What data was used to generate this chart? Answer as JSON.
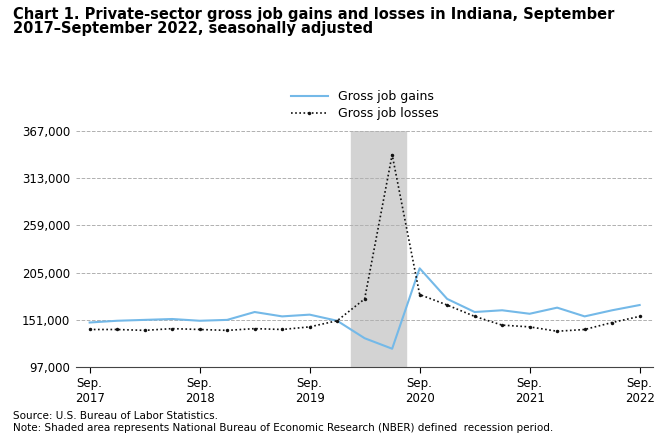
{
  "title_line1": "Chart 1. Private-sector gross job gains and losses in Indiana, September",
  "title_line2": "2017–September 2022, seasonally adjusted",
  "title_fontsize": 10.5,
  "source_text": "Source: U.S. Bureau of Labor Statistics.\nNote: Shaded area represents National Bureau of Economic Research (NBER) defined  recession period.",
  "source_fontsize": 7.5,
  "ylim": [
    97000,
    367000
  ],
  "yticks": [
    97000,
    151000,
    205000,
    259000,
    313000,
    367000
  ],
  "gains_color": "#74b9e8",
  "losses_color": "#111111",
  "grid_color": "#b0b0b0",
  "background_color": "#ffffff",
  "recession_color": "#d3d3d3",
  "legend_label_gains": "Gross job gains",
  "legend_label_losses": "Gross job losses",
  "gains_q": [
    148000,
    150000,
    151000,
    152000,
    150000,
    151000,
    160000,
    155000,
    157000,
    150000,
    130000,
    118000,
    210000,
    175000,
    160000,
    162000,
    158000,
    165000,
    155000,
    162000,
    168000
  ],
  "losses_q": [
    140000,
    140000,
    139000,
    141000,
    140000,
    139000,
    141000,
    140000,
    143000,
    150000,
    175000,
    340000,
    180000,
    168000,
    155000,
    145000,
    143000,
    138000,
    140000,
    148000,
    155000
  ],
  "recession_xstart": 9.5,
  "recession_xend": 11.5,
  "sep_positions": [
    0,
    4,
    8,
    12,
    16,
    20
  ],
  "sep_labels": [
    "Sep.\n2017",
    "Sep.\n2018",
    "Sep.\n2019",
    "Sep.\n2020",
    "Sep.\n2021",
    "Sep.\n2022"
  ]
}
